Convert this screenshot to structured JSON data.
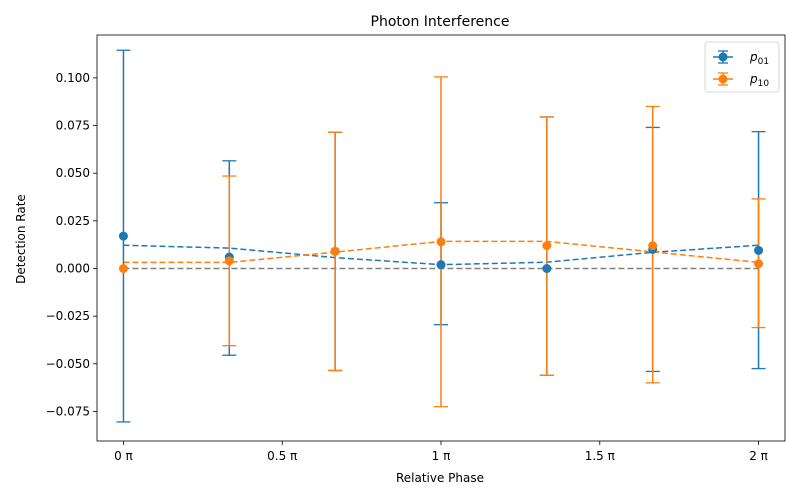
{
  "chart_data": {
    "type": "scatter",
    "title": "Photon Interference",
    "xlabel": "Relative Phase",
    "ylabel": "Detection Rate",
    "xlim": [
      -0.0833,
      2.0833
    ],
    "ylim": [
      -0.0905,
      0.1225
    ],
    "xticks": [
      {
        "value": 0,
        "label": "0 π"
      },
      {
        "value": 0.5,
        "label": "0.5 π"
      },
      {
        "value": 1,
        "label": "1 π"
      },
      {
        "value": 1.5,
        "label": "1.5 π"
      },
      {
        "value": 2,
        "label": "2 π"
      }
    ],
    "yticks": [
      {
        "value": -0.075,
        "label": "−0.075"
      },
      {
        "value": -0.05,
        "label": "−0.050"
      },
      {
        "value": -0.025,
        "label": "−0.025"
      },
      {
        "value": 0,
        "label": "0.000"
      },
      {
        "value": 0.025,
        "label": "0.025"
      },
      {
        "value": 0.05,
        "label": "0.050"
      },
      {
        "value": 0.075,
        "label": "0.075"
      },
      {
        "value": 0.1,
        "label": "0.100"
      }
    ],
    "reference_line": {
      "y": 0,
      "color": "#808080"
    },
    "legend_position": "top-right",
    "series": [
      {
        "name": "p01",
        "legend_base": "p",
        "legend_sub": "01",
        "color": "#1f77b4",
        "points": [
          {
            "x": 0,
            "y": 0.017,
            "yerr_low": -0.0805,
            "yerr_high": 0.1145
          },
          {
            "x": 0.3333,
            "y": 0.006,
            "yerr_low": -0.0455,
            "yerr_high": 0.0565
          },
          {
            "x": 0.6667,
            "y": 0.009,
            "yerr_low": -0.0535,
            "yerr_high": 0.0715
          },
          {
            "x": 1,
            "y": 0.002,
            "yerr_low": -0.0295,
            "yerr_high": 0.0345
          },
          {
            "x": 1.3333,
            "y": 0.0,
            "yerr_low": -0.056,
            "yerr_high": 0.0795
          },
          {
            "x": 1.6667,
            "y": 0.01,
            "yerr_low": -0.054,
            "yerr_high": 0.074
          },
          {
            "x": 2,
            "y": 0.0095,
            "yerr_low": -0.0525,
            "yerr_high": 0.0718
          }
        ],
        "fit": [
          {
            "x": 0,
            "y": 0.0122
          },
          {
            "x": 0.3333,
            "y": 0.0107
          },
          {
            "x": 0.6667,
            "y": 0.0057
          },
          {
            "x": 1,
            "y": 0.002
          },
          {
            "x": 1.3333,
            "y": 0.0033
          },
          {
            "x": 1.6667,
            "y": 0.0085
          },
          {
            "x": 2,
            "y": 0.0122
          }
        ]
      },
      {
        "name": "p10",
        "legend_base": "p",
        "legend_sub": "10",
        "color": "#ff7f0e",
        "points": [
          {
            "x": 0,
            "y": 0.0,
            "yerr_low": 0.0,
            "yerr_high": 0.0
          },
          {
            "x": 0.3333,
            "y": 0.004,
            "yerr_low": -0.0405,
            "yerr_high": 0.0485
          },
          {
            "x": 0.6667,
            "y": 0.009,
            "yerr_low": -0.0535,
            "yerr_high": 0.0715
          },
          {
            "x": 1,
            "y": 0.014,
            "yerr_low": -0.0725,
            "yerr_high": 0.1005
          },
          {
            "x": 1.3333,
            "y": 0.012,
            "yerr_low": -0.056,
            "yerr_high": 0.0795
          },
          {
            "x": 1.6667,
            "y": 0.012,
            "yerr_low": -0.06,
            "yerr_high": 0.085
          },
          {
            "x": 2,
            "y": 0.0025,
            "yerr_low": -0.031,
            "yerr_high": 0.0365
          }
        ],
        "fit": [
          {
            "x": 0,
            "y": 0.0032
          },
          {
            "x": 0.3333,
            "y": 0.0032
          },
          {
            "x": 0.6667,
            "y": 0.0086
          },
          {
            "x": 1,
            "y": 0.0142
          },
          {
            "x": 1.3333,
            "y": 0.0142
          },
          {
            "x": 1.6667,
            "y": 0.0087
          },
          {
            "x": 2,
            "y": 0.0032
          }
        ]
      }
    ]
  }
}
